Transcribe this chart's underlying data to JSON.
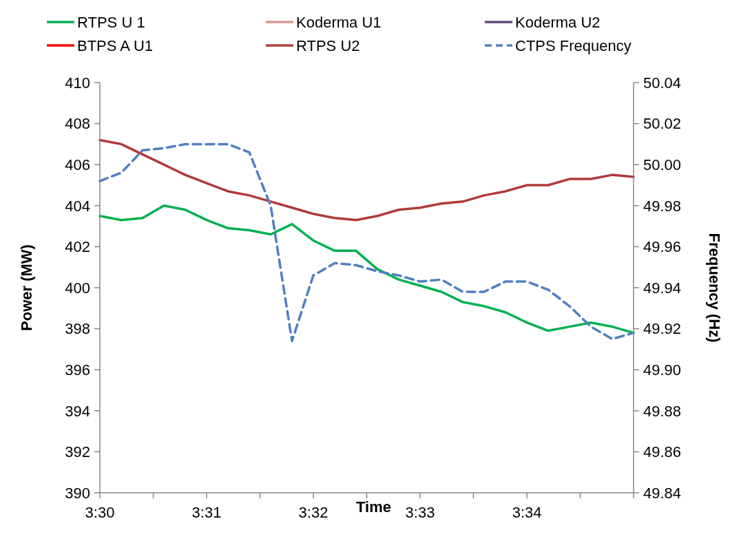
{
  "chart_data": {
    "type": "line",
    "xlabel": "Time",
    "ylabel": "Power (MW)",
    "y2label": "Frequency (Hz)",
    "legend": "top",
    "grid": false,
    "marker": "none",
    "xlim": [
      3.5,
      3.58333
    ],
    "xticks": [
      {
        "value": 3.5,
        "label": "3:30"
      },
      {
        "value": 3.50833,
        "label": null
      },
      {
        "value": 3.51667,
        "label": "3:31"
      },
      {
        "value": 3.525,
        "label": null
      },
      {
        "value": 3.53333,
        "label": "3:32"
      },
      {
        "value": 3.54167,
        "label": null
      },
      {
        "value": 3.55,
        "label": "3:33"
      },
      {
        "value": 3.55833,
        "label": null
      },
      {
        "value": 3.56667,
        "label": "3:34"
      },
      {
        "value": 3.575,
        "label": null
      },
      {
        "value": 3.58333,
        "label": null
      }
    ],
    "ylim": [
      390,
      410
    ],
    "yticks": [
      390,
      392,
      394,
      396,
      398,
      400,
      402,
      404,
      406,
      408,
      410
    ],
    "y2lim": [
      49.84,
      50.04
    ],
    "y2ticks": [
      {
        "value": 49.84,
        "label": "49.84"
      },
      {
        "value": 49.86,
        "label": "49.86"
      },
      {
        "value": 49.88,
        "label": "49.88"
      },
      {
        "value": 49.9,
        "label": "49.90"
      },
      {
        "value": 49.92,
        "label": "49.92"
      },
      {
        "value": 49.94,
        "label": "49.94"
      },
      {
        "value": 49.96,
        "label": "49.96"
      },
      {
        "value": 49.98,
        "label": "49.98"
      },
      {
        "value": 50.0,
        "label": "50.00"
      },
      {
        "value": 50.02,
        "label": "50.02"
      },
      {
        "value": 50.04,
        "label": "50.04"
      }
    ],
    "x": [
      3.5,
      3.50333,
      3.50667,
      3.51,
      3.51333,
      3.51667,
      3.52,
      3.52333,
      3.52667,
      3.53,
      3.53333,
      3.53667,
      3.54,
      3.54333,
      3.54667,
      3.55,
      3.55333,
      3.55667,
      3.56,
      3.56333,
      3.56667,
      3.57,
      3.57333,
      3.57667,
      3.58,
      3.58333
    ],
    "series": [
      {
        "name": "RTPS U 1",
        "color": "#00b050",
        "line_style": "solid",
        "values": [
          403.5,
          403.3,
          403.4,
          404.0,
          403.8,
          403.3,
          402.9,
          402.8,
          402.6,
          403.1,
          402.3,
          401.8,
          401.8,
          400.9,
          400.4,
          400.1,
          399.8,
          399.3,
          399.1,
          398.8,
          398.3,
          397.9,
          398.1,
          398.3,
          398.1,
          397.8
        ]
      },
      {
        "name": "Koderma U1",
        "color": "#d99694",
        "line_style": "solid",
        "values": [
          null,
          null,
          null,
          null,
          null,
          null,
          null,
          null,
          null,
          null,
          null,
          null,
          null,
          null,
          null,
          null,
          null,
          null,
          null,
          null,
          null,
          null,
          null,
          null,
          null,
          null
        ]
      },
      {
        "name": "Koderma U2",
        "color": "#604a7b",
        "line_style": "solid",
        "values": [
          null,
          null,
          null,
          null,
          null,
          null,
          null,
          null,
          null,
          null,
          null,
          null,
          null,
          null,
          null,
          null,
          null,
          null,
          null,
          null,
          null,
          null,
          null,
          null,
          null,
          null
        ]
      },
      {
        "name": "BTPS A U1",
        "color": "#ff0000",
        "line_style": "solid",
        "values": [
          null,
          null,
          null,
          null,
          null,
          null,
          null,
          null,
          null,
          null,
          null,
          null,
          null,
          null,
          null,
          null,
          null,
          null,
          null,
          null,
          null,
          null,
          null,
          null,
          null,
          null
        ]
      },
      {
        "name": "RTPS U2",
        "color": "#b03a3a",
        "line_style": "solid",
        "values": [
          407.2,
          407.0,
          406.5,
          406.0,
          405.5,
          405.1,
          404.7,
          404.5,
          404.2,
          403.9,
          403.6,
          403.4,
          403.3,
          403.5,
          403.8,
          403.9,
          404.1,
          404.2,
          404.5,
          404.7,
          405.0,
          405.0,
          405.3,
          405.3,
          405.5,
          405.4
        ]
      },
      {
        "name": "CTPS Frequency",
        "color": "#4f7fc0",
        "axis": "y2",
        "line_style": "dashed",
        "values": [
          49.992,
          49.996,
          50.007,
          50.008,
          50.01,
          50.01,
          50.01,
          50.006,
          49.98,
          49.914,
          49.946,
          49.952,
          49.951,
          49.948,
          49.946,
          49.943,
          49.944,
          49.938,
          49.938,
          49.943,
          49.943,
          49.939,
          49.931,
          49.921,
          49.915,
          49.918
        ]
      }
    ]
  }
}
